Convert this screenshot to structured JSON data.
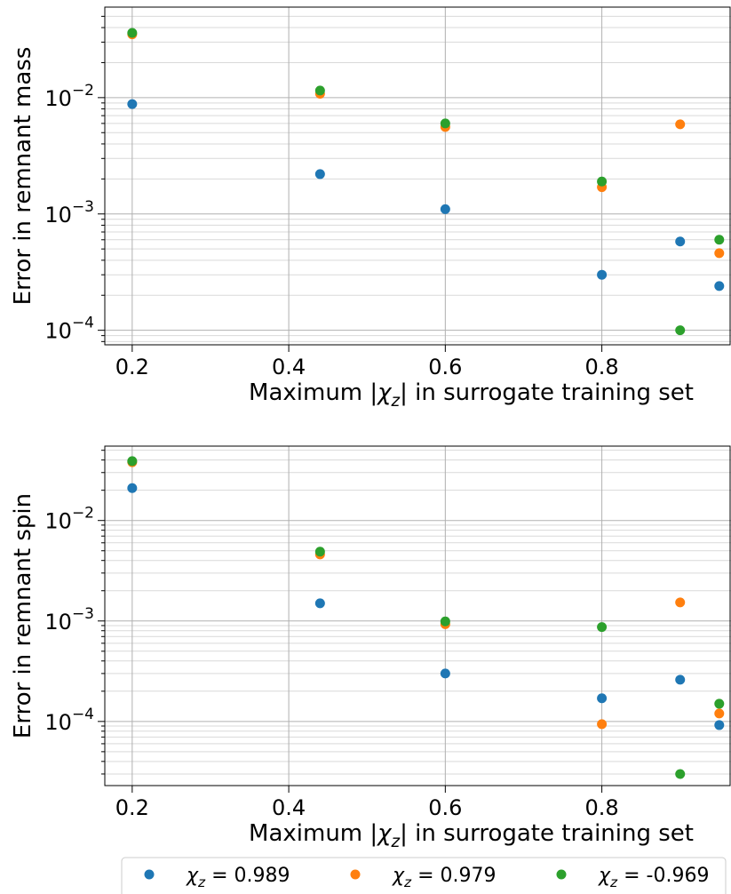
{
  "chart_data": [
    {
      "type": "scatter",
      "title": "",
      "xlabel": "Maximum |χz| in surrogate training set",
      "ylabel": "Error in remnant mass",
      "yscale": "log",
      "xlim": [
        0.165,
        0.965
      ],
      "ylim": [
        7.5e-05,
        0.06
      ],
      "xticks": [
        {
          "value": 0.2,
          "label": "0.2"
        },
        {
          "value": 0.4,
          "label": "0.4"
        },
        {
          "value": 0.6,
          "label": "0.6"
        },
        {
          "value": 0.8,
          "label": "0.8"
        }
      ],
      "yticks": [
        {
          "value": 0.01,
          "base": "10",
          "exp": "−2"
        },
        {
          "value": 0.001,
          "base": "10",
          "exp": "−3"
        },
        {
          "value": 0.0001,
          "base": "10",
          "exp": "−4"
        }
      ],
      "grid": true,
      "x": [
        0.2,
        0.44,
        0.6,
        0.8,
        0.9,
        0.95
      ],
      "series": [
        {
          "name": "χz = 0.989",
          "color": "#1f77b4",
          "values": [
            0.0088,
            0.0022,
            0.0011,
            0.0003,
            0.00058,
            0.00024
          ]
        },
        {
          "name": "χz = 0.979",
          "color": "#ff7f0e",
          "values": [
            0.035,
            0.0108,
            0.0056,
            0.0017,
            0.0059,
            0.00046
          ]
        },
        {
          "name": "χz = -0.969",
          "color": "#2ca02c",
          "values": [
            0.036,
            0.0115,
            0.006,
            0.0019,
            0.0001,
            0.0006
          ]
        }
      ]
    },
    {
      "type": "scatter",
      "title": "",
      "xlabel": "Maximum |χz| in surrogate training set",
      "ylabel": "Error in remnant spin",
      "yscale": "log",
      "xlim": [
        0.165,
        0.965
      ],
      "ylim": [
        2.3e-05,
        0.055
      ],
      "xticks": [
        {
          "value": 0.2,
          "label": "0.2"
        },
        {
          "value": 0.4,
          "label": "0.4"
        },
        {
          "value": 0.6,
          "label": "0.6"
        },
        {
          "value": 0.8,
          "label": "0.8"
        }
      ],
      "yticks": [
        {
          "value": 0.01,
          "base": "10",
          "exp": "−2"
        },
        {
          "value": 0.001,
          "base": "10",
          "exp": "−3"
        },
        {
          "value": 0.0001,
          "base": "10",
          "exp": "−4"
        }
      ],
      "grid": true,
      "x": [
        0.2,
        0.44,
        0.6,
        0.8,
        0.9,
        0.95
      ],
      "series": [
        {
          "name": "χz = 0.989",
          "color": "#1f77b4",
          "values": [
            0.021,
            0.0015,
            0.0003,
            0.00017,
            0.00026,
            9.2e-05
          ]
        },
        {
          "name": "χz = 0.979",
          "color": "#ff7f0e",
          "values": [
            0.038,
            0.0046,
            0.00093,
            9.4e-05,
            0.00153,
            0.00012
          ]
        },
        {
          "name": "χz = -0.969",
          "color": "#2ca02c",
          "values": [
            0.039,
            0.0049,
            0.00099,
            0.00087,
            3e-05,
            0.00015
          ]
        }
      ]
    }
  ],
  "legend": {
    "placement": "bottom",
    "entries": [
      {
        "label": "χz = 0.989",
        "color": "#1f77b4"
      },
      {
        "label": "χz = 0.979",
        "color": "#ff7f0e"
      },
      {
        "label": "χz = -0.969",
        "color": "#2ca02c"
      }
    ]
  }
}
